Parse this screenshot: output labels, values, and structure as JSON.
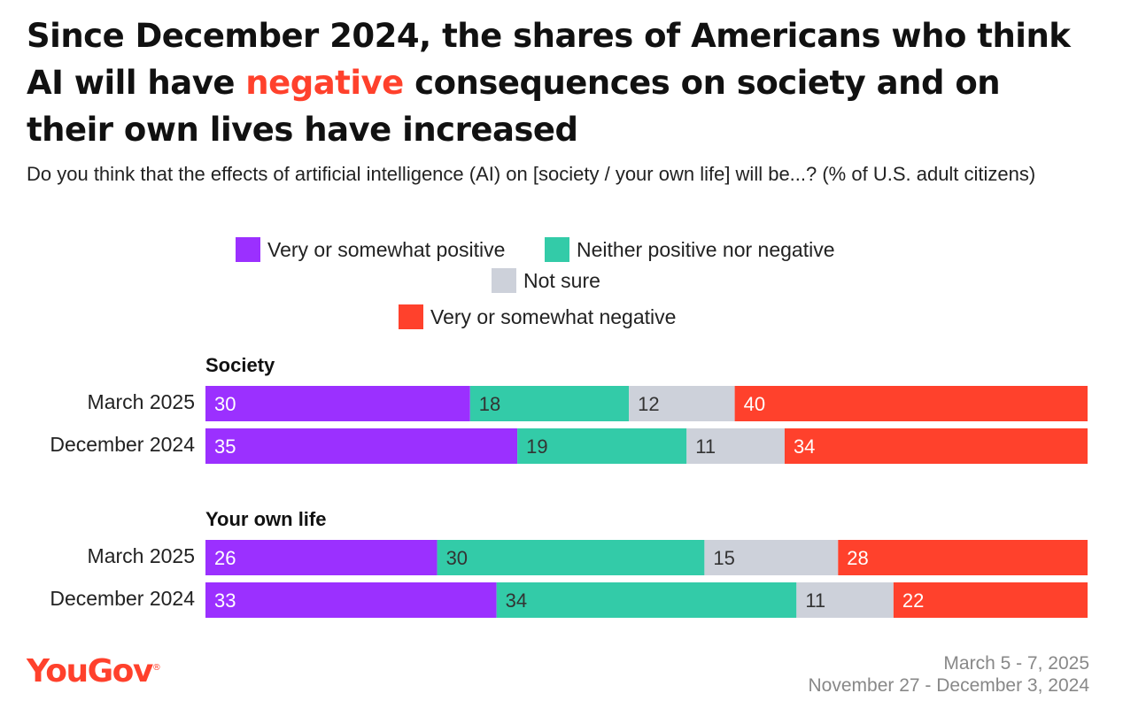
{
  "title": {
    "part1": "Since December 2024, the shares of Americans who think AI will have ",
    "highlight": "negative",
    "part2": " consequences on society and on their own lives have increased"
  },
  "subtitle": "Do you think that the effects of artificial intelligence (AI) on [society / your own life] will be...? (% of U.S. adult citizens)",
  "legend": [
    {
      "label": "Very or somewhat positive",
      "color": "#9b30ff"
    },
    {
      "label": "Neither positive nor negative",
      "color": "#33cba8"
    },
    {
      "label": "Not sure",
      "color": "#cdd1da"
    },
    {
      "label": "Very or somewhat negative",
      "color": "#ff412c"
    }
  ],
  "chart_data": {
    "type": "bar",
    "orientation": "horizontal",
    "stacked": true,
    "xlim": [
      0,
      100
    ],
    "groups": [
      {
        "name": "Society",
        "rows": [
          {
            "label": "March 2025",
            "values": [
              30,
              18,
              12,
              40
            ]
          },
          {
            "label": "December 2024",
            "values": [
              35,
              19,
              11,
              34
            ]
          }
        ]
      },
      {
        "name": "Your own life",
        "rows": [
          {
            "label": "March 2025",
            "values": [
              26,
              30,
              15,
              28
            ]
          },
          {
            "label": "December 2024",
            "values": [
              33,
              34,
              11,
              22
            ]
          }
        ]
      }
    ],
    "series": [
      "Very or somewhat positive",
      "Neither positive nor negative",
      "Not sure",
      "Very or somewhat negative"
    ],
    "label_colors": [
      "#ffffff",
      "#333333",
      "#333333",
      "#ffffff"
    ]
  },
  "footer": {
    "logo": "YouGov",
    "logo_mark": "®",
    "dates": [
      "March 5 - 7, 2025",
      "November 27 - December 3, 2024"
    ]
  }
}
